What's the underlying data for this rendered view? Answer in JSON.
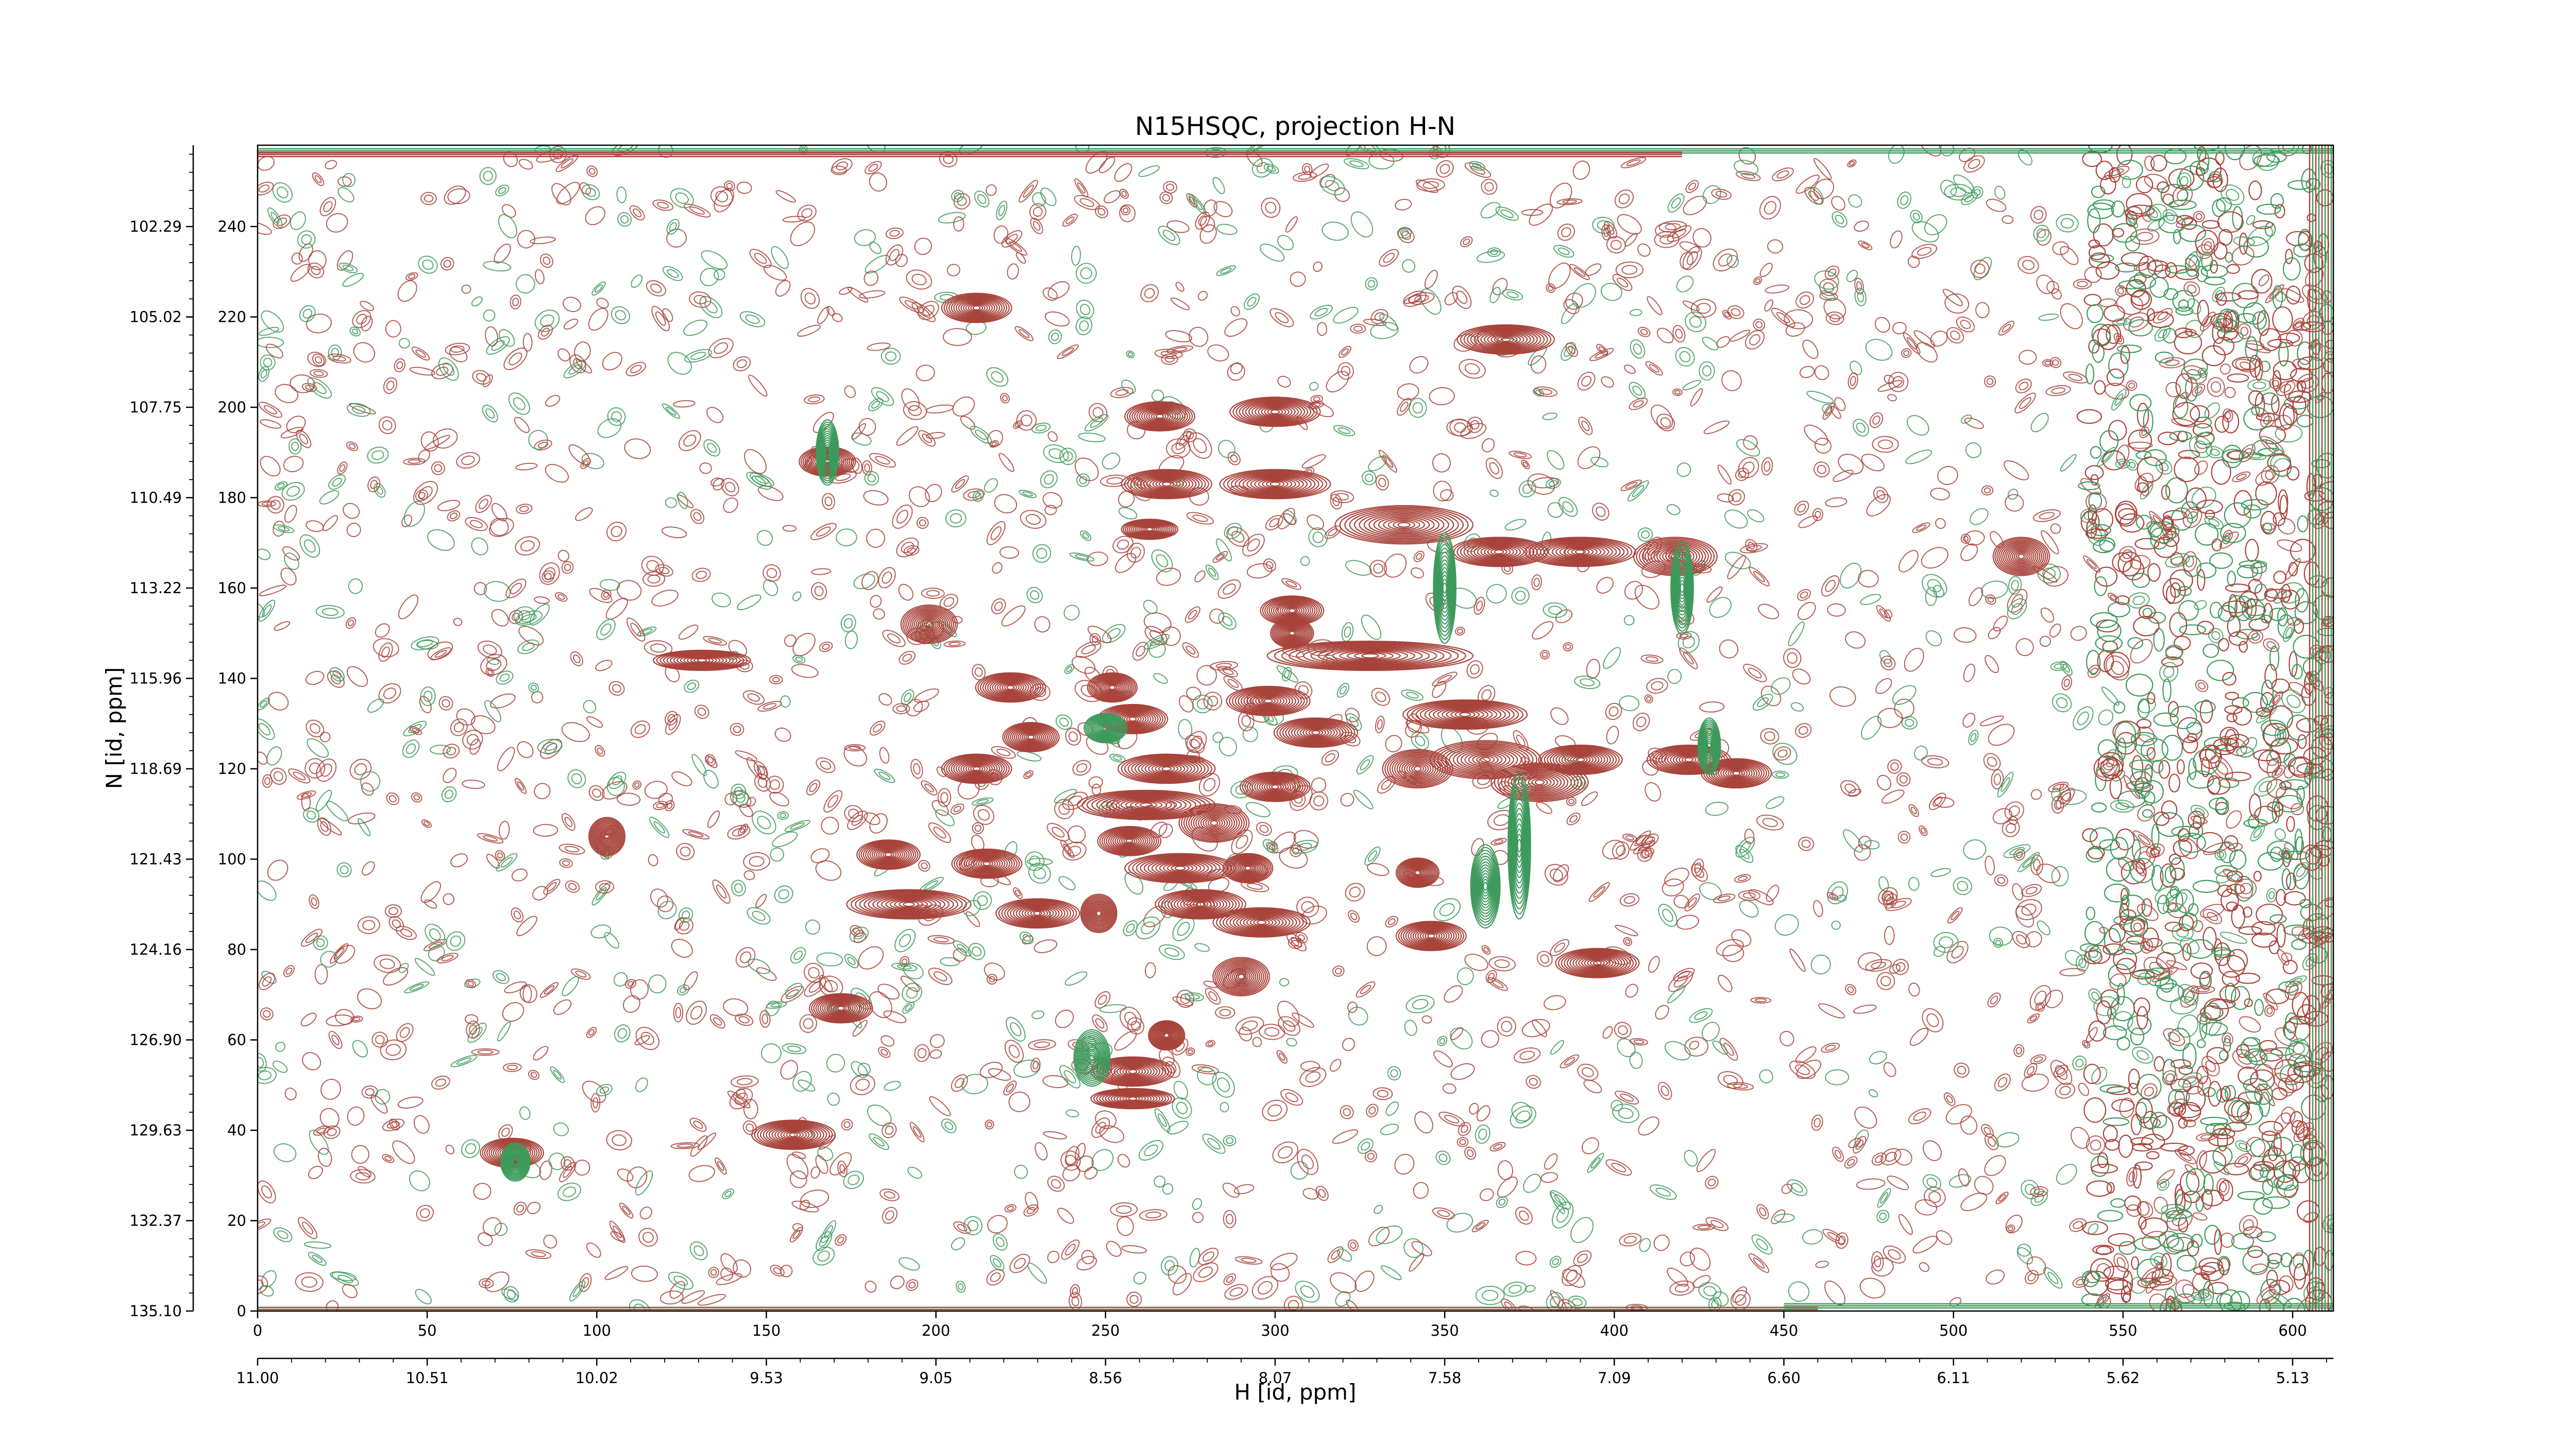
{
  "chart_data": {
    "type": "contour",
    "title": "N15HSQC, projection H-N",
    "xlabel": "H [id, ppm]",
    "ylabel": "N [id, ppm]",
    "x_index_ticks": [
      "0",
      "50",
      "100",
      "150",
      "200",
      "250",
      "300",
      "350",
      "400",
      "450",
      "500",
      "550",
      "600"
    ],
    "x_ppm_ticks": [
      "11.00",
      "10.51",
      "10.02",
      "9.53",
      "9.05",
      "8.56",
      "8.07",
      "7.58",
      "7.09",
      "6.60",
      "6.11",
      "5.62",
      "5.13"
    ],
    "y_index_ticks": [
      "0",
      "20",
      "40",
      "60",
      "80",
      "100",
      "120",
      "140",
      "160",
      "180",
      "200",
      "220",
      "240"
    ],
    "y_ppm_ticks": [
      "135.10",
      "132.37",
      "129.63",
      "126.90",
      "124.16",
      "121.43",
      "118.69",
      "115.96",
      "113.22",
      "110.49",
      "107.75",
      "105.02",
      "102.29"
    ],
    "xlim_index": [
      0,
      612
    ],
    "ylim_index": [
      0,
      258
    ],
    "colors": {
      "positive": "#a8433b",
      "negative": "#3e9a5c"
    },
    "series": [
      {
        "sign": "positive",
        "peaks": [
          {
            "x": 75,
            "y": 35,
            "wx": 9,
            "wy": 3
          },
          {
            "x": 158,
            "y": 39,
            "wx": 12,
            "wy": 3
          },
          {
            "x": 212,
            "y": 222,
            "wx": 10,
            "wy": 3
          },
          {
            "x": 168,
            "y": 188,
            "wx": 8,
            "wy": 3
          },
          {
            "x": 131,
            "y": 144,
            "wx": 14,
            "wy": 2
          },
          {
            "x": 103,
            "y": 105,
            "wx": 5,
            "wy": 4
          },
          {
            "x": 198,
            "y": 152,
            "wx": 8,
            "wy": 4
          },
          {
            "x": 222,
            "y": 138,
            "wx": 10,
            "wy": 3
          },
          {
            "x": 228,
            "y": 127,
            "wx": 8,
            "wy": 3
          },
          {
            "x": 212,
            "y": 120,
            "wx": 10,
            "wy": 3
          },
          {
            "x": 186,
            "y": 101,
            "wx": 9,
            "wy": 3
          },
          {
            "x": 215,
            "y": 99,
            "wx": 10,
            "wy": 3
          },
          {
            "x": 192,
            "y": 90,
            "wx": 18,
            "wy": 3
          },
          {
            "x": 230,
            "y": 88,
            "wx": 12,
            "wy": 3
          },
          {
            "x": 172,
            "y": 67,
            "wx": 9,
            "wy": 3
          },
          {
            "x": 248,
            "y": 88,
            "wx": 5,
            "wy": 4
          },
          {
            "x": 268,
            "y": 120,
            "wx": 14,
            "wy": 3
          },
          {
            "x": 262,
            "y": 112,
            "wx": 20,
            "wy": 3
          },
          {
            "x": 257,
            "y": 104,
            "wx": 9,
            "wy": 3
          },
          {
            "x": 272,
            "y": 98,
            "wx": 16,
            "wy": 3
          },
          {
            "x": 292,
            "y": 98,
            "wx": 7,
            "wy": 3
          },
          {
            "x": 282,
            "y": 108,
            "wx": 10,
            "wy": 4
          },
          {
            "x": 300,
            "y": 116,
            "wx": 10,
            "wy": 3
          },
          {
            "x": 278,
            "y": 90,
            "wx": 13,
            "wy": 3
          },
          {
            "x": 296,
            "y": 86,
            "wx": 14,
            "wy": 3
          },
          {
            "x": 290,
            "y": 74,
            "wx": 8,
            "wy": 4
          },
          {
            "x": 268,
            "y": 61,
            "wx": 5,
            "wy": 3
          },
          {
            "x": 258,
            "y": 53,
            "wx": 12,
            "wy": 3
          },
          {
            "x": 258,
            "y": 47,
            "wx": 12,
            "wy": 2
          },
          {
            "x": 252,
            "y": 138,
            "wx": 7,
            "wy": 3
          },
          {
            "x": 258,
            "y": 131,
            "wx": 10,
            "wy": 3
          },
          {
            "x": 268,
            "y": 183,
            "wx": 13,
            "wy": 3
          },
          {
            "x": 263,
            "y": 173,
            "wx": 8,
            "wy": 2
          },
          {
            "x": 266,
            "y": 198,
            "wx": 10,
            "wy": 3
          },
          {
            "x": 300,
            "y": 199,
            "wx": 13,
            "wy": 3
          },
          {
            "x": 300,
            "y": 183,
            "wx": 16,
            "wy": 3
          },
          {
            "x": 305,
            "y": 155,
            "wx": 9,
            "wy": 3
          },
          {
            "x": 298,
            "y": 135,
            "wx": 12,
            "wy": 3
          },
          {
            "x": 312,
            "y": 128,
            "wx": 12,
            "wy": 3
          },
          {
            "x": 338,
            "y": 174,
            "wx": 20,
            "wy": 4
          },
          {
            "x": 328,
            "y": 145,
            "wx": 30,
            "wy": 3
          },
          {
            "x": 356,
            "y": 132,
            "wx": 18,
            "wy": 3
          },
          {
            "x": 362,
            "y": 122,
            "wx": 16,
            "wy": 4
          },
          {
            "x": 378,
            "y": 117,
            "wx": 14,
            "wy": 4
          },
          {
            "x": 390,
            "y": 122,
            "wx": 12,
            "wy": 3
          },
          {
            "x": 366,
            "y": 168,
            "wx": 14,
            "wy": 3
          },
          {
            "x": 390,
            "y": 168,
            "wx": 16,
            "wy": 3
          },
          {
            "x": 418,
            "y": 167,
            "wx": 12,
            "wy": 4
          },
          {
            "x": 422,
            "y": 122,
            "wx": 12,
            "wy": 3
          },
          {
            "x": 436,
            "y": 119,
            "wx": 10,
            "wy": 3
          },
          {
            "x": 368,
            "y": 215,
            "wx": 14,
            "wy": 3
          },
          {
            "x": 342,
            "y": 97,
            "wx": 6,
            "wy": 3
          },
          {
            "x": 346,
            "y": 83,
            "wx": 10,
            "wy": 3
          },
          {
            "x": 395,
            "y": 77,
            "wx": 12,
            "wy": 3
          },
          {
            "x": 520,
            "y": 167,
            "wx": 8,
            "wy": 4
          },
          {
            "x": 305,
            "y": 150,
            "wx": 6,
            "wy": 3
          },
          {
            "x": 342,
            "y": 120,
            "wx": 10,
            "wy": 4
          }
        ]
      },
      {
        "sign": "negative",
        "peaks": [
          {
            "x": 168,
            "y": 190,
            "wx": 3,
            "wy": 7
          },
          {
            "x": 350,
            "y": 160,
            "wx": 3,
            "wy": 12
          },
          {
            "x": 372,
            "y": 103,
            "wx": 3,
            "wy": 16
          },
          {
            "x": 420,
            "y": 160,
            "wx": 3,
            "wy": 10
          },
          {
            "x": 246,
            "y": 56,
            "wx": 5,
            "wy": 6
          },
          {
            "x": 250,
            "y": 129,
            "wx": 6,
            "wy": 3
          },
          {
            "x": 362,
            "y": 94,
            "wx": 4,
            "wy": 9
          },
          {
            "x": 76,
            "y": 33,
            "wx": 4,
            "wy": 4
          },
          {
            "x": 428,
            "y": 125,
            "wx": 3,
            "wy": 6
          }
        ]
      }
    ]
  }
}
